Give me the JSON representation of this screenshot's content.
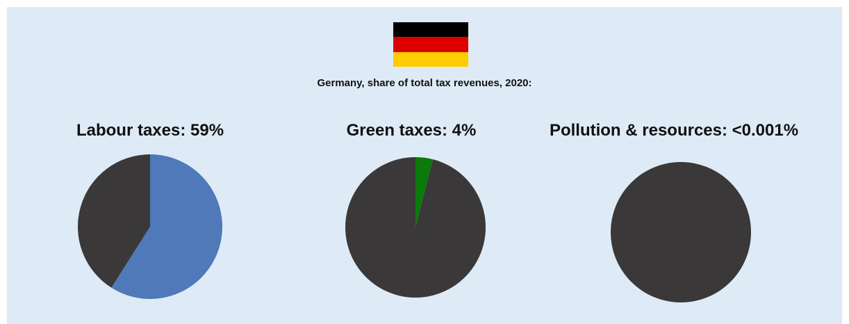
{
  "colors": {
    "background": "#deebf7",
    "remainder": "#3a3839",
    "flag": [
      "#000000",
      "#dd0000",
      "#ffcc00"
    ]
  },
  "header": {
    "flag_icon": "germany-flag-icon",
    "subtitle": "Germany, share of total tax revenues, 2020:"
  },
  "chart_data": [
    {
      "type": "pie",
      "title": "Labour taxes: 59%",
      "values": [
        59,
        41
      ],
      "colors": [
        "#4f79b8",
        "#3a3839"
      ]
    },
    {
      "type": "pie",
      "title": "Green taxes: 4%",
      "values": [
        4,
        96
      ],
      "colors": [
        "#0a7a0a",
        "#3a3839"
      ]
    },
    {
      "type": "pie",
      "title": "Pollution & resources: <0.001%",
      "values": [
        0.001,
        99.999
      ],
      "colors": [
        "#3a3839",
        "#3a3839"
      ]
    }
  ]
}
